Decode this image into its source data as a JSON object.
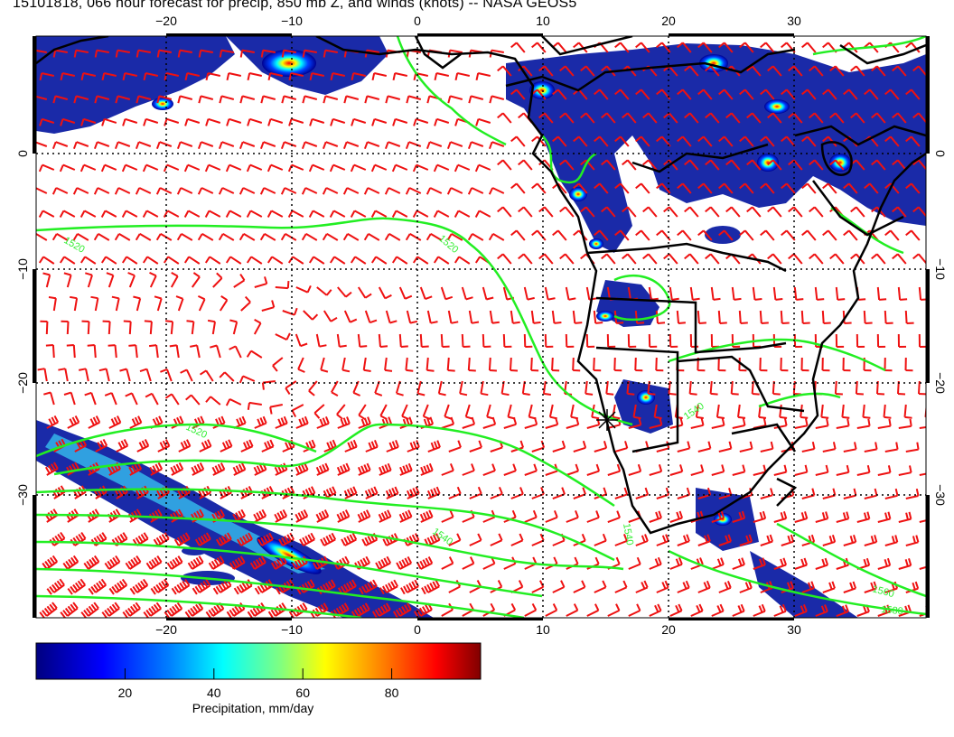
{
  "title": "15101818, 066 hour forecast for precip, 850 mb Z, and winds (knots) -- NASA GEOS5",
  "map": {
    "lon_ticks": [
      "−20",
      "−10",
      "0",
      "10",
      "20",
      "30"
    ],
    "lat_ticks": [
      "0",
      "−10",
      "−20",
      "−30"
    ],
    "contour_labels": [
      "1520",
      "1520",
      "1520",
      "1540",
      "1540",
      "1540",
      "1560",
      "1580"
    ],
    "colors": {
      "wind_barbs": "#ee1111",
      "contours": "#22ee22",
      "coastline": "#000000",
      "grid": "#000000"
    }
  },
  "colorbar": {
    "label": "Precipitation, mm/day",
    "ticks": [
      "20",
      "40",
      "60",
      "80"
    ],
    "range": [
      0,
      100
    ],
    "colors": [
      "#000080",
      "#0000ff",
      "#0080ff",
      "#00ffff",
      "#80ff80",
      "#ffff00",
      "#ff8000",
      "#ff0000",
      "#800000"
    ]
  }
}
